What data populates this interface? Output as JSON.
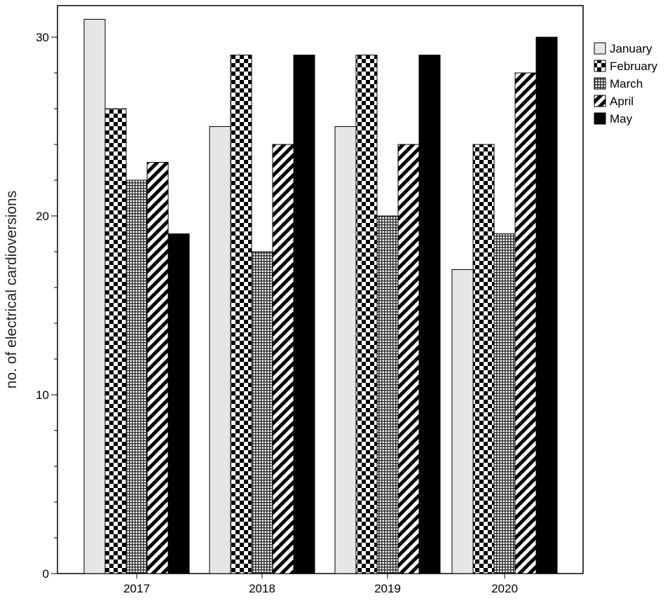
{
  "chart_data": {
    "type": "bar",
    "title": "",
    "xlabel": "",
    "ylabel": "no. of electrical cardioversions",
    "categories": [
      "2017",
      "2018",
      "2019",
      "2020"
    ],
    "series": [
      {
        "name": "January",
        "values": [
          31,
          25,
          25,
          17
        ],
        "pattern": "light-gray"
      },
      {
        "name": "February",
        "values": [
          26,
          29,
          29,
          24
        ],
        "pattern": "checkerboard"
      },
      {
        "name": "March",
        "values": [
          22,
          18,
          20,
          19
        ],
        "pattern": "fine-grid"
      },
      {
        "name": "April",
        "values": [
          23,
          24,
          24,
          28
        ],
        "pattern": "diagonal-stripes"
      },
      {
        "name": "May",
        "values": [
          19,
          29,
          29,
          30
        ],
        "pattern": "solid-black"
      }
    ],
    "ylim": [
      0,
      32
    ],
    "yticks": [
      0,
      10,
      20,
      30
    ],
    "grid": false,
    "legend_position": "right",
    "colors": {
      "january_fill": "#e6e6e6",
      "may_fill": "#000000",
      "stroke": "#000000"
    }
  }
}
